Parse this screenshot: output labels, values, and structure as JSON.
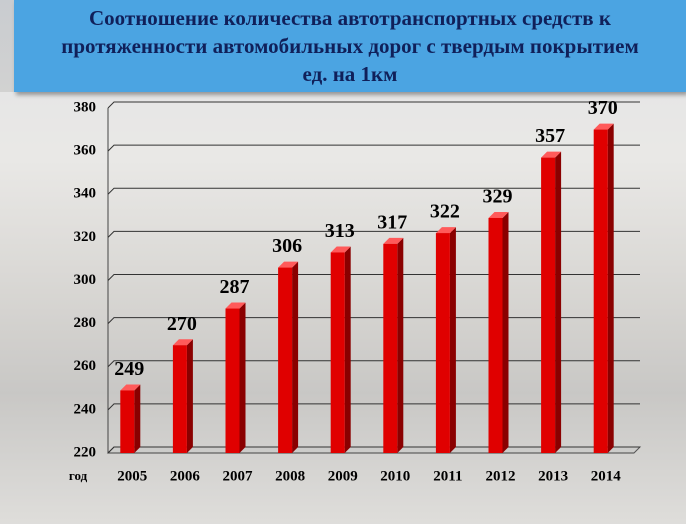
{
  "chart_data": {
    "type": "bar",
    "title": "Соотношение количества автотранспортных средств к протяженности автомобильных дорог с твердым покрытием ед. на 1км",
    "x_label": "год",
    "categories": [
      "2005",
      "2006",
      "2007",
      "2008",
      "2009",
      "2010",
      "2011",
      "2012",
      "2013",
      "2014"
    ],
    "values": [
      249,
      270,
      287,
      306,
      313,
      317,
      322,
      329,
      357,
      370
    ],
    "color": "#e00000",
    "ylim": [
      220,
      380
    ],
    "yticks": [
      220,
      240,
      260,
      280,
      300,
      320,
      340,
      360,
      380
    ],
    "grid": true
  }
}
